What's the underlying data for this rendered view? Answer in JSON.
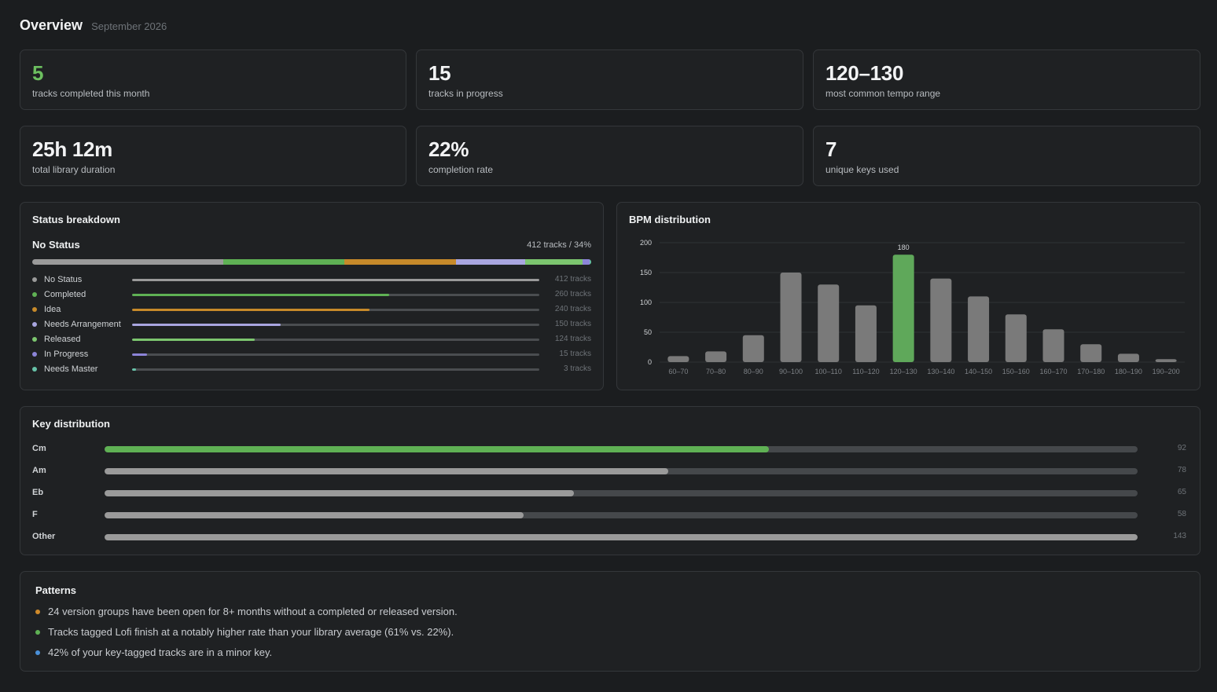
{
  "header": {
    "title": "Overview",
    "subtitle": "September 2026"
  },
  "stats": [
    {
      "value": "5",
      "label": "tracks completed this month",
      "highlight": true
    },
    {
      "value": "15",
      "label": "tracks in progress"
    },
    {
      "value": "120–130",
      "label": "most common tempo range"
    },
    {
      "value": "25h 12m",
      "label": "total library duration"
    },
    {
      "value": "22%",
      "label": "completion rate"
    },
    {
      "value": "7",
      "label": "unique keys used"
    }
  ],
  "status": {
    "title": "Status breakdown",
    "selected_label": "No Status",
    "selected_count": "412 tracks / 34%",
    "max": 412,
    "items": [
      {
        "name": "No Status",
        "count": 412,
        "count_label": "412 tracks",
        "color": "#9a9a9a"
      },
      {
        "name": "Completed",
        "count": 260,
        "count_label": "260 tracks",
        "color": "#5fb154"
      },
      {
        "name": "Idea",
        "count": 240,
        "count_label": "240 tracks",
        "color": "#c78a2a"
      },
      {
        "name": "Needs Arrangement",
        "count": 150,
        "count_label": "150 tracks",
        "color": "#a9a6e0"
      },
      {
        "name": "Released",
        "count": 124,
        "count_label": "124 tracks",
        "color": "#7cc66f"
      },
      {
        "name": "In Progress",
        "count": 15,
        "count_label": "15 tracks",
        "color": "#8c84d8"
      },
      {
        "name": "Needs Master",
        "count": 3,
        "count_label": "3 tracks",
        "color": "#67c2a8"
      }
    ]
  },
  "bpm": {
    "title": "BPM distribution",
    "chart_data": {
      "type": "bar",
      "categories": [
        "60–70",
        "70–80",
        "80–90",
        "90–100",
        "100–110",
        "110–120",
        "120–130",
        "130–140",
        "140–150",
        "150–160",
        "160–170",
        "170–180",
        "180–190",
        "190–200"
      ],
      "values": [
        10,
        18,
        45,
        150,
        130,
        95,
        180,
        140,
        110,
        80,
        55,
        30,
        14,
        5
      ],
      "highlight_index": 6,
      "highlight_label": "180",
      "ylim": [
        0,
        200
      ],
      "yticks": [
        "0",
        "50",
        "100",
        "150",
        "200"
      ],
      "grid": true,
      "bar_color": "#7a7a7a",
      "highlight_color": "#5fa85a"
    }
  },
  "keys": {
    "title": "Key distribution",
    "max": 143,
    "items": [
      {
        "name": "Cm",
        "count": 92,
        "color": "#5fb154"
      },
      {
        "name": "Am",
        "count": 78,
        "color": "#9a9a9a"
      },
      {
        "name": "Eb",
        "count": 65,
        "color": "#9a9a9a"
      },
      {
        "name": "F",
        "count": 58,
        "color": "#9a9a9a"
      },
      {
        "name": "Other",
        "count": 143,
        "color": "#9a9a9a"
      }
    ]
  },
  "patterns": {
    "title": "Patterns",
    "items": [
      {
        "text": "24 version groups have been open for 8+ months without a completed or released version.",
        "color": "#d08a2a"
      },
      {
        "text": "Tracks tagged Lofi finish at a notably higher rate than your library average (61% vs. 22%).",
        "color": "#5fb154"
      },
      {
        "text": "42% of your key-tagged tracks are in a minor key.",
        "color": "#4a90d9"
      }
    ]
  }
}
